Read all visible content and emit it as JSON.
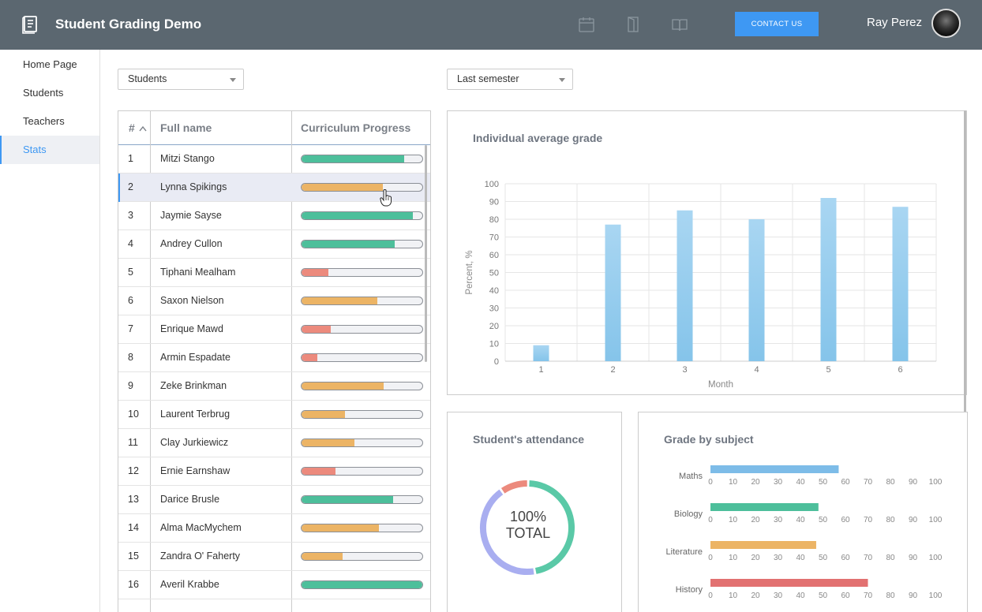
{
  "header": {
    "title": "Student Grading Demo",
    "contact_label": "CONTACT US",
    "user_name": "Ray Perez",
    "icons": [
      "calendar-icon",
      "door-icon",
      "book-icon"
    ]
  },
  "sidebar": {
    "items": [
      {
        "label": "Home Page",
        "active": false
      },
      {
        "label": "Students",
        "active": false
      },
      {
        "label": "Teachers",
        "active": false
      },
      {
        "label": "Stats",
        "active": true
      }
    ]
  },
  "filters": {
    "group": "Students",
    "period": "Last semester"
  },
  "table": {
    "columns": [
      "#",
      "Full name",
      "Curriculum Progress"
    ],
    "rows": [
      {
        "num": "1",
        "name": "Mitzi Stango",
        "progress": 0.85,
        "color": "#4dbf9b"
      },
      {
        "num": "2",
        "name": "Lynna Spikings",
        "progress": 0.67,
        "color": "#ecb465"
      },
      {
        "num": "3",
        "name": "Jaymie Sayse",
        "progress": 0.92,
        "color": "#4dbf9b"
      },
      {
        "num": "4",
        "name": "Andrey Cullon",
        "progress": 0.77,
        "color": "#4dbf9b"
      },
      {
        "num": "5",
        "name": "Tiphani Mealham",
        "progress": 0.22,
        "color": "#ec8a7d"
      },
      {
        "num": "6",
        "name": "Saxon Nielson",
        "progress": 0.63,
        "color": "#ecb465"
      },
      {
        "num": "7",
        "name": "Enrique Mawd",
        "progress": 0.24,
        "color": "#ec8a7d"
      },
      {
        "num": "8",
        "name": "Armin Espadate",
        "progress": 0.13,
        "color": "#ec8a7d"
      },
      {
        "num": "9",
        "name": "Zeke Brinkman",
        "progress": 0.68,
        "color": "#ecb465"
      },
      {
        "num": "10",
        "name": "Laurent Terbrug",
        "progress": 0.36,
        "color": "#ecb465"
      },
      {
        "num": "11",
        "name": "Clay Jurkiewicz",
        "progress": 0.44,
        "color": "#ecb465"
      },
      {
        "num": "12",
        "name": "Ernie Earnshaw",
        "progress": 0.28,
        "color": "#ec8a7d"
      },
      {
        "num": "13",
        "name": "Darice Brusle",
        "progress": 0.76,
        "color": "#4dbf9b"
      },
      {
        "num": "14",
        "name": "Alma MacMychem",
        "progress": 0.64,
        "color": "#ecb465"
      },
      {
        "num": "15",
        "name": "Zandra O' Faherty",
        "progress": 0.34,
        "color": "#ecb465"
      },
      {
        "num": "16",
        "name": "Averil Krabbe",
        "progress": 1.0,
        "color": "#4dbf9b"
      }
    ]
  },
  "panels": {
    "avg_title": "Individual average grade",
    "attendance_title": "Student's attendance",
    "subject_title": "Grade by subject",
    "attendance_center": [
      "100%",
      "TOTAL"
    ]
  },
  "chart_data": [
    {
      "type": "bar",
      "title": "Individual average grade",
      "xlabel": "Month",
      "ylabel": "Percent, %",
      "categories": [
        "1",
        "2",
        "3",
        "4",
        "5",
        "6"
      ],
      "values": [
        9,
        77,
        85,
        80,
        92,
        87
      ],
      "ylim": [
        0,
        100
      ],
      "yticks": [
        0,
        10,
        20,
        30,
        40,
        50,
        60,
        70,
        80,
        90,
        100
      ],
      "grid": true,
      "color": "#85c4ea"
    },
    {
      "type": "pie",
      "title": "Student's attendance",
      "center_label": "100% TOTAL",
      "values": [
        47,
        43,
        10
      ],
      "colors": [
        "#5ac9a7",
        "#a9aef0",
        "#ec8a7d"
      ]
    },
    {
      "type": "bar",
      "orientation": "horizontal",
      "title": "Grade by subject",
      "categories": [
        "Maths",
        "Biology",
        "Literature",
        "History"
      ],
      "values": [
        57,
        48,
        47,
        70
      ],
      "colors": [
        "#7dbce8",
        "#4dbf9b",
        "#ecb465",
        "#e27171"
      ],
      "xlim": [
        0,
        100
      ],
      "xticks": [
        0,
        10,
        20,
        30,
        40,
        50,
        60,
        70,
        80,
        90,
        100
      ]
    }
  ]
}
